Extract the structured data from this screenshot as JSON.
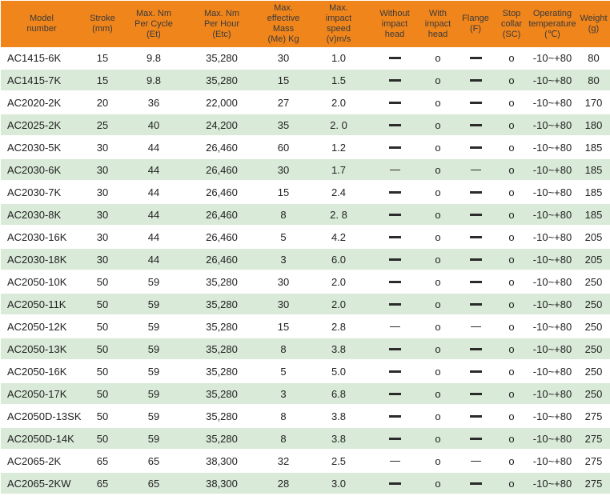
{
  "colors": {
    "header_bg": "#f0851c",
    "header_text": "#3a3a3a",
    "row_alt_bg": "#d9ead8",
    "body_text": "#222222",
    "row_separator": "#ffffff"
  },
  "table": {
    "columns": [
      {
        "id": "model",
        "label": "Model\nnumber"
      },
      {
        "id": "stroke",
        "label": "Stroke\n(mm)"
      },
      {
        "id": "et",
        "label": "Max. Nm\nPer Cycle\n(Et)"
      },
      {
        "id": "etc",
        "label": "Max. Nm\nPer Hour\n(Etc)"
      },
      {
        "id": "me",
        "label": "Max.\neffective\nMass\n(Me) Kg"
      },
      {
        "id": "v",
        "label": "Max.\nimpact\nspeed\n(v)m/s"
      },
      {
        "id": "without",
        "label": "Without\nimpact\nhead"
      },
      {
        "id": "with",
        "label": "With\nimpact\nhead"
      },
      {
        "id": "flange",
        "label": "Flange\n(F)"
      },
      {
        "id": "sc",
        "label": "Stop\ncollar\n(SC)"
      },
      {
        "id": "temp",
        "label": "Operating\ntemperature\n(℃)"
      },
      {
        "id": "weight",
        "label": "Weight\n(g)"
      }
    ],
    "marks": {
      "dash": "—",
      "circle": "o"
    },
    "rows": [
      {
        "model": "AC1415-6K",
        "stroke": "15",
        "et": "9.8",
        "etc": "35,280",
        "me": "30",
        "v": "1.0",
        "without": "dash",
        "with": "circle",
        "flange": "dash",
        "sc": "circle",
        "temp": "-10~+80",
        "weight": "80"
      },
      {
        "model": "AC1415-7K",
        "stroke": "15",
        "et": "9.8",
        "etc": "35,280",
        "me": "15",
        "v": "1.5",
        "without": "dash",
        "with": "circle",
        "flange": "dash",
        "sc": "circle",
        "temp": "-10~+80",
        "weight": "80"
      },
      {
        "model": "AC2020-2K",
        "stroke": "20",
        "et": "36",
        "etc": "22,000",
        "me": "27",
        "v": "2.0",
        "without": "dash",
        "with": "circle",
        "flange": "dash",
        "sc": "circle",
        "temp": "-10~+80",
        "weight": "170"
      },
      {
        "model": "AC2025-2K",
        "stroke": "25",
        "et": "40",
        "etc": "24,200",
        "me": "35",
        "v": "2. 0",
        "without": "dash",
        "with": "circle",
        "flange": "dash",
        "sc": "circle",
        "temp": "-10~+80",
        "weight": "180"
      },
      {
        "model": "AC2030-5K",
        "stroke": "30",
        "et": "44",
        "etc": "26,460",
        "me": "60",
        "v": "1.2",
        "without": "dash",
        "with": "circle",
        "flange": "dash",
        "sc": "circle",
        "temp": "-10~+80",
        "weight": "185"
      },
      {
        "model": "AC2030-6K",
        "stroke": "30",
        "et": "44",
        "etc": "26,460",
        "me": "30",
        "v": "1.7",
        "without": "dash-thin",
        "with": "circle",
        "flange": "dash-thin",
        "sc": "circle",
        "temp": "-10~+80",
        "weight": "185"
      },
      {
        "model": "AC2030-7K",
        "stroke": "30",
        "et": "44",
        "etc": "26,460",
        "me": "15",
        "v": "2.4",
        "without": "dash",
        "with": "circle",
        "flange": "dash",
        "sc": "circle",
        "temp": "-10~+80",
        "weight": "185"
      },
      {
        "model": "AC2030-8K",
        "stroke": "30",
        "et": "44",
        "etc": "26,460",
        "me": "8",
        "v": "2. 8",
        "without": "dash",
        "with": "circle",
        "flange": "dash",
        "sc": "circle",
        "temp": "-10~+80",
        "weight": "185"
      },
      {
        "model": "AC2030-16K",
        "stroke": "30",
        "et": "44",
        "etc": "26,460",
        "me": "5",
        "v": "4.2",
        "without": "dash",
        "with": "circle",
        "flange": "dash",
        "sc": "circle",
        "temp": "-10~+80",
        "weight": "205"
      },
      {
        "model": "AC2030-18K",
        "stroke": "30",
        "et": "44",
        "etc": "26,460",
        "me": "3",
        "v": "6.0",
        "without": "dash",
        "with": "circle",
        "flange": "dash",
        "sc": "circle",
        "temp": "-10~+80",
        "weight": "205"
      },
      {
        "model": "AC2050-10K",
        "stroke": "50",
        "et": "59",
        "etc": "35,280",
        "me": "30",
        "v": "2.0",
        "without": "dash",
        "with": "circle",
        "flange": "dash",
        "sc": "circle",
        "temp": "-10~+80",
        "weight": "250"
      },
      {
        "model": "AC2050-11K",
        "stroke": "50",
        "et": "59",
        "etc": "35,280",
        "me": "30",
        "v": "2.0",
        "without": "dash",
        "with": "circle",
        "flange": "dash",
        "sc": "circle",
        "temp": "-10~+80",
        "weight": "250"
      },
      {
        "model": "AC2050-12K",
        "stroke": "50",
        "et": "59",
        "etc": "35,280",
        "me": "15",
        "v": "2.8",
        "without": "dash-thin",
        "with": "circle",
        "flange": "dash-thin",
        "sc": "circle",
        "temp": "-10~+80",
        "weight": "250"
      },
      {
        "model": "AC2050-13K",
        "stroke": "50",
        "et": "59",
        "etc": "35,280",
        "me": "8",
        "v": "3.8",
        "without": "dash",
        "with": "circle",
        "flange": "dash",
        "sc": "circle",
        "temp": "-10~+80",
        "weight": "250"
      },
      {
        "model": "AC2050-16K",
        "stroke": "50",
        "et": "59",
        "etc": "35,280",
        "me": "5",
        "v": "5.0",
        "without": "dash",
        "with": "circle",
        "flange": "dash",
        "sc": "circle",
        "temp": "-10~+80",
        "weight": "250"
      },
      {
        "model": "AC2050-17K",
        "stroke": "50",
        "et": "59",
        "etc": "35,280",
        "me": "3",
        "v": "6.8",
        "without": "dash",
        "with": "circle",
        "flange": "dash",
        "sc": "circle",
        "temp": "-10~+80",
        "weight": "250"
      },
      {
        "model": "AC2050D-13SK",
        "stroke": "50",
        "et": "59",
        "etc": "35,280",
        "me": "8",
        "v": "3.8",
        "without": "dash",
        "with": "circle",
        "flange": "dash",
        "sc": "circle",
        "temp": "-10~+80",
        "weight": "275"
      },
      {
        "model": "AC2050D-14K",
        "stroke": "50",
        "et": "59",
        "etc": "35,280",
        "me": "8",
        "v": "3.8",
        "without": "dash",
        "with": "circle",
        "flange": "dash",
        "sc": "circle",
        "temp": "-10~+80",
        "weight": "275"
      },
      {
        "model": "AC2065-2K",
        "stroke": "65",
        "et": "65",
        "etc": "38,300",
        "me": "32",
        "v": "2.5",
        "without": "dash-thin",
        "with": "circle",
        "flange": "dash-thin",
        "sc": "circle",
        "temp": "-10~+80",
        "weight": "275"
      },
      {
        "model": "AC2065-2KW",
        "stroke": "65",
        "et": "65",
        "etc": "38,300",
        "me": "28",
        "v": "3.0",
        "without": "dash",
        "with": "circle",
        "flange": "dash",
        "sc": "circle",
        "temp": "-10~+80",
        "weight": "275"
      }
    ]
  }
}
